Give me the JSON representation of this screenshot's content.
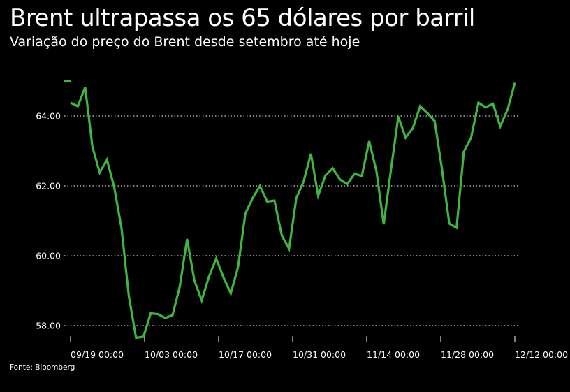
{
  "title": "Brent ultrapassa os 65 dólares por barril",
  "subtitle": "Variação do preço do Brent desde setembro até hoje",
  "source": "Fonte: Bloomberg",
  "colors": {
    "line": "#3fb63f",
    "background": "#000000",
    "grid": "#ffffff",
    "text": "#ffffff"
  },
  "chart_data": {
    "type": "line",
    "title": "Brent ultrapassa os 65 dólares por barril",
    "subtitle": "Variação do preço do Brent desde setembro até hoje",
    "ylim": [
      57.6,
      65.0
    ],
    "yticks": [
      {
        "value": 58,
        "label": "58.00"
      },
      {
        "value": 60,
        "label": "60.00"
      },
      {
        "value": 62,
        "label": "62.00"
      },
      {
        "value": 64,
        "label": "64.00"
      }
    ],
    "xticks": [
      "09/19 00:00",
      "10/03 00:00",
      "10/17 00:00",
      "10/31 00:00",
      "11/14 00:00",
      "11/28 00:00",
      "12/12 00:00"
    ],
    "grid": "horizontal dotted",
    "series": [
      {
        "values": [
          64.38,
          64.28,
          64.82,
          63.12,
          62.38,
          62.75,
          61.95,
          60.78,
          58.85,
          57.65,
          57.68,
          58.35,
          58.33,
          58.22,
          58.3,
          59.12,
          60.48,
          59.3,
          58.72,
          59.4,
          59.92,
          59.38,
          58.92,
          59.68,
          61.2,
          61.65,
          62.0,
          61.55,
          61.58,
          60.58,
          60.2,
          61.65,
          62.12,
          62.92,
          61.72,
          62.3,
          62.5,
          62.18,
          62.05,
          62.35,
          62.28,
          63.28,
          62.42,
          60.9,
          62.48,
          63.98,
          63.38,
          63.65,
          64.28,
          64.08,
          63.85,
          62.48,
          60.92,
          60.8,
          62.98,
          63.38,
          64.38,
          64.25,
          64.35,
          63.7,
          64.18,
          64.95
        ]
      }
    ]
  }
}
